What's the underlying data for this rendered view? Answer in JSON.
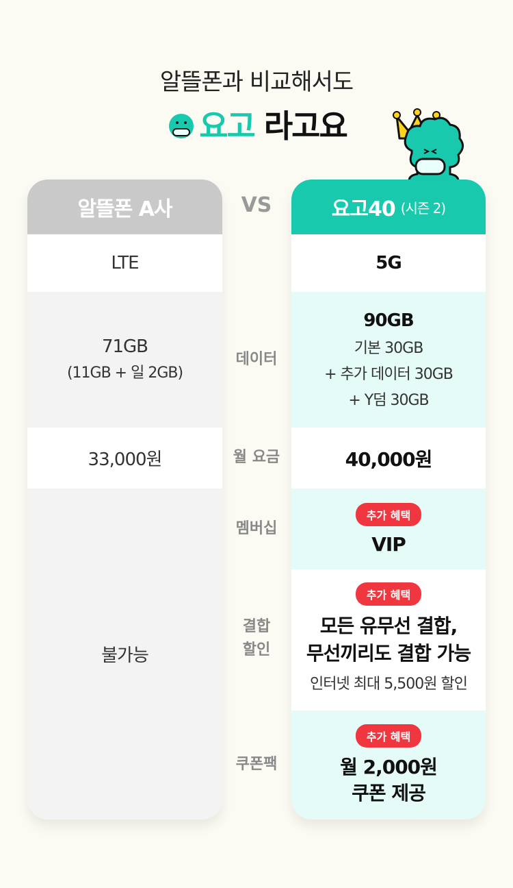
{
  "header": {
    "subtitle": "알뜰폰과 비교해서도",
    "headline_brand": "요고",
    "headline_rest": "라고요"
  },
  "vs_label": "VS",
  "colors": {
    "brand_mint": "#18c9ad",
    "mint_bg": "#e4fbf7",
    "gray_header": "#c9c9c9",
    "badge_red": "#f0363f"
  },
  "column_a": {
    "title": "알뜰폰 A사",
    "network": "LTE",
    "data_main": "71GB",
    "data_sub": "(11GB + 일 2GB)",
    "price": "33,000원",
    "extras": "불가능"
  },
  "column_b": {
    "title": "요고40",
    "season": "(시즌 2)",
    "network": "5G",
    "data_main": "90GB",
    "data_lines": [
      "기본 30GB",
      "+ 추가 데이터 30GB",
      "+ Y덤 30GB"
    ],
    "price": "40,000원",
    "badge": "추가 혜택",
    "membership": "VIP",
    "bundle_lines": [
      "모든 유무선 결합,",
      "무선끼리도 결합 가능"
    ],
    "bundle_note": "인터넷 최대 5,500원 할인",
    "coupon_lines": [
      "월 2,000원",
      "쿠폰 제공"
    ]
  },
  "labels": {
    "data": "데이터",
    "price": "월 요금",
    "membership": "멤버십",
    "bundle_1": "결합",
    "bundle_2": "할인",
    "coupon": "쿠폰팩"
  },
  "icons": [
    "mascot-icon",
    "crown-icon"
  ]
}
